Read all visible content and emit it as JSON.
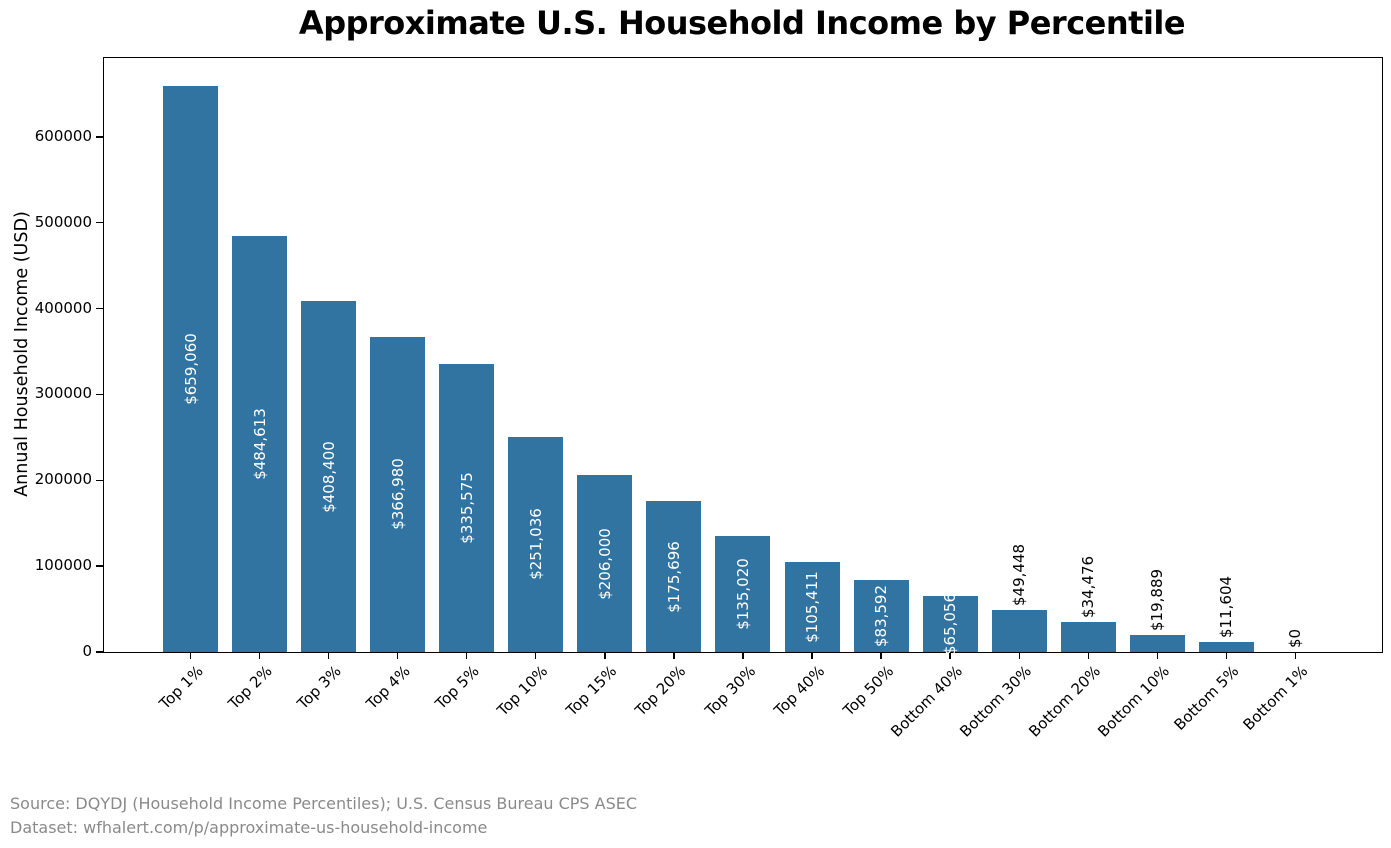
{
  "title": "Approximate U.S. Household Income by Percentile",
  "y_axis_label": "Annual Household Income (USD)",
  "chart_data": {
    "type": "bar",
    "title": "Approximate U.S. Household Income by Percentile",
    "xlabel": "",
    "ylabel": "Annual Household Income (USD)",
    "categories": [
      "Top 1%",
      "Top 2%",
      "Top 3%",
      "Top 4%",
      "Top 5%",
      "Top 10%",
      "Top 15%",
      "Top 20%",
      "Top 30%",
      "Top 40%",
      "Top 50%",
      "Bottom 40%",
      "Bottom 30%",
      "Bottom 20%",
      "Bottom 10%",
      "Bottom 5%",
      "Bottom 1%"
    ],
    "values": [
      659060,
      484613,
      408400,
      366980,
      335575,
      251036,
      206000,
      175696,
      135020,
      105411,
      83592,
      65056,
      49448,
      34476,
      19889,
      11604,
      0
    ],
    "bar_labels": [
      "$659,060",
      "$484,613",
      "$408,400",
      "$366,980",
      "$335,575",
      "$251,036",
      "$206,000",
      "$175,696",
      "$135,020",
      "$105,411",
      "$83,592",
      "$65,056",
      "$49,448",
      "$34,476",
      "$19,889",
      "$11,604",
      "$0"
    ],
    "ylim": [
      0,
      692000
    ],
    "yticks": [
      0,
      100000,
      200000,
      300000,
      400000,
      500000,
      600000
    ],
    "grid": false,
    "legend": "none",
    "bar_color": "#3274a1",
    "label_inside_color": "#ffffff",
    "label_outside_color": "#000000",
    "inside_label_count": 12
  },
  "footer": {
    "source_line": "Source: DQYDJ (Household Income Percentiles); U.S. Census Bureau CPS ASEC",
    "dataset_line": "Dataset: wfhalert.com/p/approximate-us-household-income"
  }
}
